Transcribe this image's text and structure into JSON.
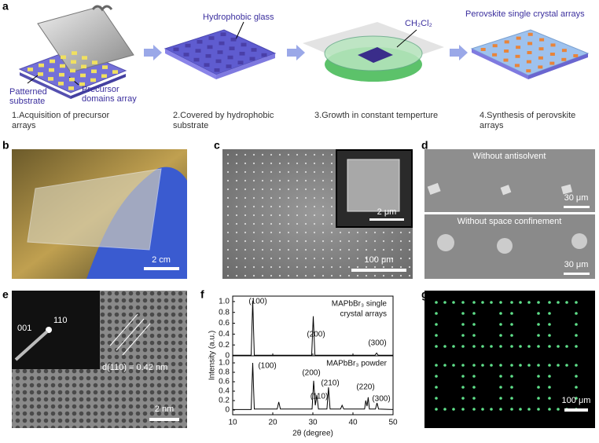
{
  "panel_labels": [
    "a",
    "b",
    "c",
    "d",
    "e",
    "f",
    "g"
  ],
  "panel_a": {
    "patterned_substrate": [
      "Patterned",
      "substrate"
    ],
    "precursor_domains": [
      "Precursor",
      "domains array"
    ],
    "hydrophobic_glass": "Hydrophobic glass",
    "solvent": "CH₂Cl₂",
    "crystal_arrays": "Perovskite single crystal arrays",
    "steps": [
      [
        "1.Acquisition of precursor",
        "arrays"
      ],
      [
        "2.Covered by hydrophobic",
        "substrate"
      ],
      [
        "3.Growth in constant temperture"
      ],
      [
        "4.Synthesis of perovskite",
        "arrays"
      ]
    ]
  },
  "panel_b": {
    "scale_bar": "2 cm"
  },
  "panel_c": {
    "scale_bar": "100 μm",
    "inset_scale_bar": "2 μm"
  },
  "panel_d": {
    "top_title": "Without antisolvent",
    "top_scale_bar": "30 μm",
    "bottom_title": "Without space confinement",
    "bottom_scale_bar": "30 μm"
  },
  "panel_e": {
    "spot_labels": [
      "001",
      "110"
    ],
    "spacing": "d(110) = 0.42 nm",
    "scale_bar": "2 nm"
  },
  "chart_data": [
    {
      "type": "line",
      "annotation": [
        "MAPbBr₃ single",
        "crystal arrays"
      ],
      "peak_labels": [
        "(100)",
        "(200)",
        "(300)"
      ],
      "color": "#000000",
      "x": [
        10,
        14.6,
        15,
        15.4,
        29.7,
        30.1,
        30.5,
        45.5,
        45.9,
        46.3,
        50
      ],
      "values": [
        0.01,
        0.01,
        1.02,
        0.01,
        0.01,
        0.73,
        0.01,
        0.01,
        0.05,
        0.01,
        0.01
      ],
      "xlim": [
        10,
        50
      ],
      "xticks": [
        10,
        20,
        30,
        40,
        50
      ],
      "ylim": [
        0,
        1.1
      ],
      "yticks": [
        0,
        0.2,
        0.4,
        0.6,
        0.8,
        {
          "value": 1,
          "label": "1.0"
        }
      ]
    },
    {
      "type": "line",
      "annotation": [
        "MAPbBr₃ powder"
      ],
      "peak_labels": [
        "(100)",
        "(110)",
        "(200)",
        "(210)",
        "(220)",
        "(300)"
      ],
      "color": "#000000",
      "x": [
        10,
        14.6,
        15,
        15.4,
        21.1,
        21.5,
        21.9,
        29.8,
        30.2,
        30.6,
        31.0,
        31.4,
        33.5,
        33.9,
        34.3,
        36.9,
        37.3,
        37.7,
        42.9,
        43.2,
        43.5,
        43.8,
        44.1,
        45.6,
        46,
        46.4,
        50
      ],
      "values": [
        0.01,
        0.01,
        1.0,
        0.02,
        0.02,
        0.17,
        0.02,
        0.02,
        0.62,
        0.1,
        0.32,
        0.02,
        0.02,
        0.48,
        0.02,
        0.02,
        0.1,
        0.02,
        0.02,
        0.2,
        0.08,
        0.27,
        0.02,
        0.02,
        0.15,
        0.02,
        0.01
      ],
      "xlim": [
        10,
        50
      ],
      "xticks": [
        10,
        20,
        30,
        40,
        50
      ],
      "ylim": [
        -0.1,
        1.15
      ],
      "yticks": [
        0,
        0.2,
        0.4,
        0.6,
        0.8,
        {
          "value": 1,
          "label": "1.0"
        }
      ],
      "xlabel": "2θ (degree)",
      "ylabel": "Intensity (a.u.)"
    }
  ],
  "panel_g": {
    "scale_bar": "100 μm"
  }
}
